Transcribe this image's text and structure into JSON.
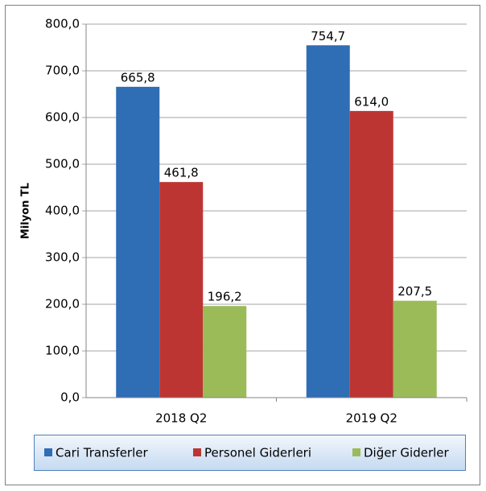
{
  "chart_data": {
    "type": "bar",
    "y_label": "Milyon TL",
    "categories": [
      "2018 Q2",
      "2019 Q2"
    ],
    "series": [
      {
        "name": "Cari Transferler",
        "color": "#2f6db5",
        "values": [
          665.8,
          754.7
        ],
        "value_labels": [
          "665,8",
          "754,7"
        ]
      },
      {
        "name": "Personel Giderleri",
        "color": "#bd3532",
        "values": [
          461.8,
          614.0
        ],
        "value_labels": [
          "461,8",
          "614,0"
        ]
      },
      {
        "name": "Diğer Giderler",
        "color": "#9bbb59",
        "values": [
          196.2,
          207.5
        ],
        "value_labels": [
          "196,2",
          "207,5"
        ]
      }
    ],
    "ylim": [
      0,
      800
    ],
    "yticks": [
      {
        "value": 0,
        "label": "0,0"
      },
      {
        "value": 100,
        "label": "100,0"
      },
      {
        "value": 200,
        "label": "200,0"
      },
      {
        "value": 300,
        "label": "300,0"
      },
      {
        "value": 400,
        "label": "400,0"
      },
      {
        "value": 500,
        "label": "500,0"
      },
      {
        "value": 600,
        "label": "600,0"
      },
      {
        "value": 700,
        "label": "700,0"
      },
      {
        "value": 800,
        "label": "800,0"
      }
    ],
    "grid": true,
    "legend": "bottom"
  }
}
